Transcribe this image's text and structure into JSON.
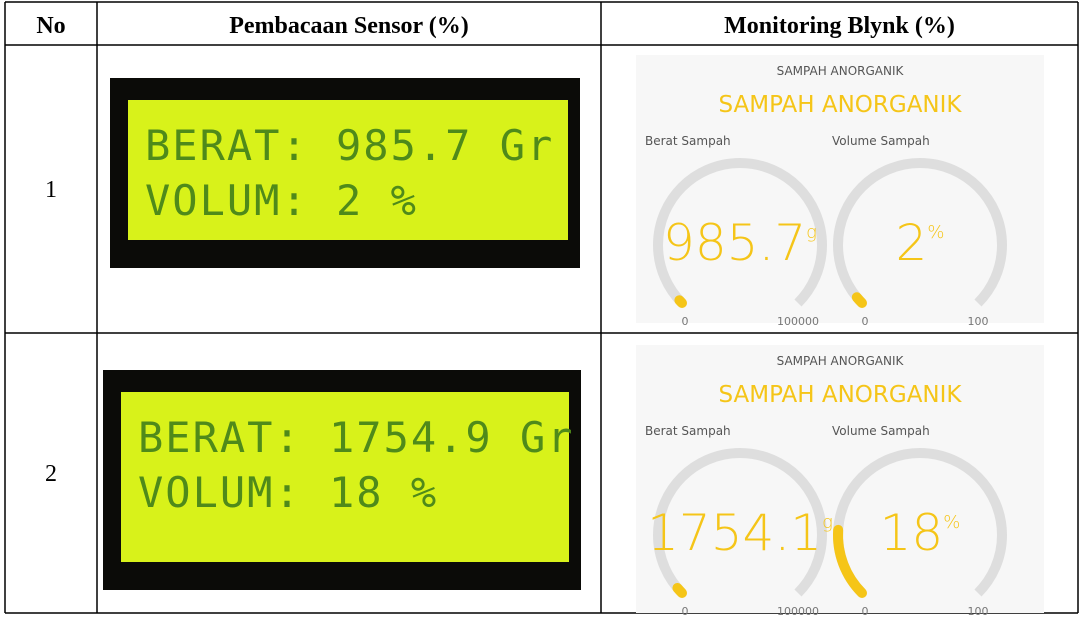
{
  "table": {
    "headers": [
      "No",
      "Pembacaan Sensor (%)",
      "Monitoring Blynk (%)"
    ],
    "rows": [
      {
        "no": "1",
        "lcd": [
          "BERAT: 985.7 Gr",
          "VOLUM: 2 %"
        ],
        "blynk": {
          "caption": "SAMPAH ANORGANIK",
          "title": "SAMPAH ANORGANIK",
          "gauges": [
            {
              "label": "Berat Sampah",
              "value": 985.7,
              "unit": "g",
              "min": 0,
              "max": 100000
            },
            {
              "label": "Volume Sampah",
              "value": 2,
              "unit": "%",
              "min": 0,
              "max": 100
            }
          ]
        }
      },
      {
        "no": "2",
        "lcd": [
          "BERAT: 1754.9 Gr",
          "VOLUM: 18 %"
        ],
        "blynk": {
          "caption": "SAMPAH ANORGANIK",
          "title": "SAMPAH ANORGANIK",
          "gauges": [
            {
              "label": "Berat Sampah",
              "value": 1754.1,
              "unit": "g",
              "min": 0,
              "max": 100000
            },
            {
              "label": "Volume Sampah",
              "value": 18,
              "unit": "%",
              "min": 0,
              "max": 100
            }
          ]
        }
      }
    ]
  }
}
